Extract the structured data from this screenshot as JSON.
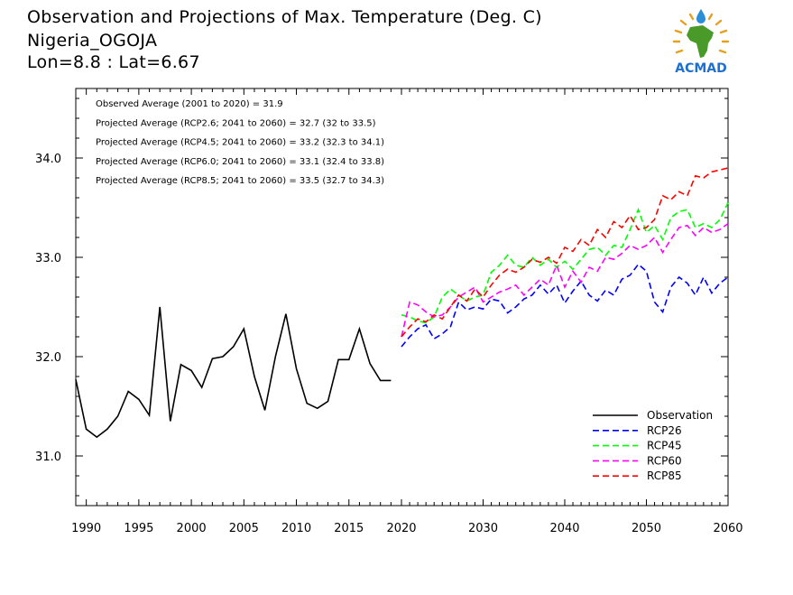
{
  "title": {
    "line1": "Observation and Projections of Max. Temperature (Deg. C)",
    "line2": "Nigeria_OGOJA",
    "line3": "Lon=8.8 : Lat=6.67"
  },
  "logo": {
    "text": "ACMAD",
    "icon": "africa-map-logo"
  },
  "annotations": [
    "Observed Average (2001 to 2020) = 31.9",
    "Projected Average (RCP2.6; 2041 to 2060) = 32.7 (32 to 33.5)",
    "Projected Average (RCP4.5; 2041 to 2060) = 33.2 (32.3 to 34.1)",
    "Projected Average (RCP6.0; 2041 to 2060) = 33.1 (32.4 to 33.8)",
    "Projected Average (RCP8.5; 2041 to 2060) = 33.5 (32.7 to 34.3)"
  ],
  "chart_data": {
    "type": "line",
    "title": "Observation and Projections of Max. Temperature (Deg. C)",
    "xlabel": "",
    "ylabel": "",
    "xlim": [
      1989,
      2060
    ],
    "ylim": [
      30.5,
      34.7
    ],
    "x_segments": [
      {
        "from": 1989,
        "to": 2020
      },
      {
        "from": 2020,
        "to": 2060
      }
    ],
    "x_ticks": [
      1990,
      1995,
      2000,
      2005,
      2010,
      2015,
      2020,
      2030,
      2040,
      2050,
      2060
    ],
    "y_ticks": [
      31.0,
      32.0,
      33.0,
      34.0
    ],
    "y_tick_labels": [
      "31.0",
      "32.0",
      "33.0",
      "34.0"
    ],
    "grid": false,
    "legend_position": "bottom-right",
    "series": [
      {
        "name": "Observation",
        "color": "#000000",
        "dash": "solid",
        "x": [
          1989,
          1990,
          1991,
          1992,
          1993,
          1994,
          1995,
          1996,
          1997,
          1998,
          1999,
          2000,
          2001,
          2002,
          2003,
          2004,
          2005,
          2006,
          2007,
          2008,
          2009,
          2010,
          2011,
          2012,
          2013,
          2014,
          2015,
          2016,
          2017,
          2018,
          2019
        ],
        "y": [
          31.77,
          31.27,
          31.19,
          31.27,
          31.4,
          31.65,
          31.57,
          31.41,
          32.5,
          31.35,
          31.92,
          31.86,
          31.69,
          31.98,
          32.0,
          32.1,
          32.28,
          31.8,
          31.46,
          32.0,
          32.43,
          31.88,
          31.53,
          31.48,
          31.55,
          31.97,
          31.97,
          32.28,
          31.93,
          31.76,
          31.76
        ]
      },
      {
        "name": "RCP26",
        "color": "#0000ff",
        "dash": "dashed",
        "x": [
          2020,
          2021,
          2022,
          2023,
          2024,
          2025,
          2026,
          2027,
          2028,
          2029,
          2030,
          2031,
          2032,
          2033,
          2034,
          2035,
          2036,
          2037,
          2038,
          2039,
          2040,
          2041,
          2042,
          2043,
          2044,
          2045,
          2046,
          2047,
          2048,
          2049,
          2050,
          2051,
          2052,
          2053,
          2054,
          2055,
          2056,
          2057,
          2058,
          2059,
          2060
        ],
        "y": [
          32.1,
          32.2,
          32.28,
          32.32,
          32.18,
          32.23,
          32.3,
          32.55,
          32.47,
          32.5,
          32.48,
          32.58,
          32.56,
          32.44,
          32.5,
          32.58,
          32.62,
          32.72,
          32.63,
          32.72,
          32.54,
          32.66,
          32.76,
          32.62,
          32.56,
          32.67,
          32.62,
          32.78,
          32.82,
          32.93,
          32.86,
          32.55,
          32.45,
          32.7,
          32.8,
          32.74,
          32.62,
          32.8,
          32.64,
          32.74,
          32.8
        ]
      },
      {
        "name": "RCP45",
        "color": "#00ff00",
        "dash": "dashed",
        "x": [
          2020,
          2021,
          2022,
          2023,
          2024,
          2025,
          2026,
          2027,
          2028,
          2029,
          2030,
          2031,
          2032,
          2033,
          2034,
          2035,
          2036,
          2037,
          2038,
          2039,
          2040,
          2041,
          2042,
          2043,
          2044,
          2045,
          2046,
          2047,
          2048,
          2049,
          2050,
          2051,
          2052,
          2053,
          2054,
          2055,
          2056,
          2057,
          2058,
          2059,
          2060
        ],
        "y": [
          32.42,
          32.4,
          32.36,
          32.34,
          32.4,
          32.6,
          32.68,
          32.62,
          32.56,
          32.6,
          32.62,
          32.85,
          32.92,
          33.02,
          32.92,
          32.9,
          33.0,
          32.92,
          32.98,
          32.9,
          32.96,
          32.88,
          32.98,
          33.08,
          33.1,
          33.02,
          33.12,
          33.1,
          33.28,
          33.48,
          33.25,
          33.32,
          33.18,
          33.4,
          33.46,
          33.48,
          33.3,
          33.34,
          33.3,
          33.38,
          33.55
        ]
      },
      {
        "name": "RCP60",
        "color": "#ff00ff",
        "dash": "dashed",
        "x": [
          2020,
          2021,
          2022,
          2023,
          2024,
          2025,
          2026,
          2027,
          2028,
          2029,
          2030,
          2031,
          2032,
          2033,
          2034,
          2035,
          2036,
          2037,
          2038,
          2039,
          2040,
          2041,
          2042,
          2043,
          2044,
          2045,
          2046,
          2047,
          2048,
          2049,
          2050,
          2051,
          2052,
          2053,
          2054,
          2055,
          2056,
          2057,
          2058,
          2059,
          2060
        ],
        "y": [
          32.2,
          32.55,
          32.52,
          32.45,
          32.4,
          32.42,
          32.5,
          32.6,
          32.65,
          32.7,
          32.55,
          32.6,
          32.65,
          32.68,
          32.72,
          32.62,
          32.7,
          32.78,
          32.72,
          32.92,
          32.7,
          32.86,
          32.75,
          32.9,
          32.86,
          33.0,
          32.98,
          33.04,
          33.12,
          33.08,
          33.12,
          33.2,
          33.05,
          33.18,
          33.3,
          33.32,
          33.22,
          33.3,
          33.25,
          33.28,
          33.34
        ]
      },
      {
        "name": "RCP85",
        "color": "#ff0000",
        "dash": "dashed",
        "x": [
          2020,
          2021,
          2022,
          2023,
          2024,
          2025,
          2026,
          2027,
          2028,
          2029,
          2030,
          2031,
          2032,
          2033,
          2034,
          2035,
          2036,
          2037,
          2038,
          2039,
          2040,
          2041,
          2042,
          2043,
          2044,
          2045,
          2046,
          2047,
          2048,
          2049,
          2050,
          2051,
          2052,
          2053,
          2054,
          2055,
          2056,
          2057,
          2058,
          2059,
          2060
        ],
        "y": [
          32.2,
          32.3,
          32.38,
          32.35,
          32.42,
          32.38,
          32.5,
          32.62,
          32.56,
          32.68,
          32.6,
          32.72,
          32.82,
          32.88,
          32.85,
          32.9,
          32.98,
          32.95,
          33.0,
          32.94,
          33.1,
          33.06,
          33.18,
          33.12,
          33.28,
          33.2,
          33.36,
          33.3,
          33.42,
          33.28,
          33.3,
          33.38,
          33.62,
          33.58,
          33.66,
          33.62,
          33.82,
          33.8,
          33.86,
          33.88,
          33.9
        ]
      }
    ]
  }
}
